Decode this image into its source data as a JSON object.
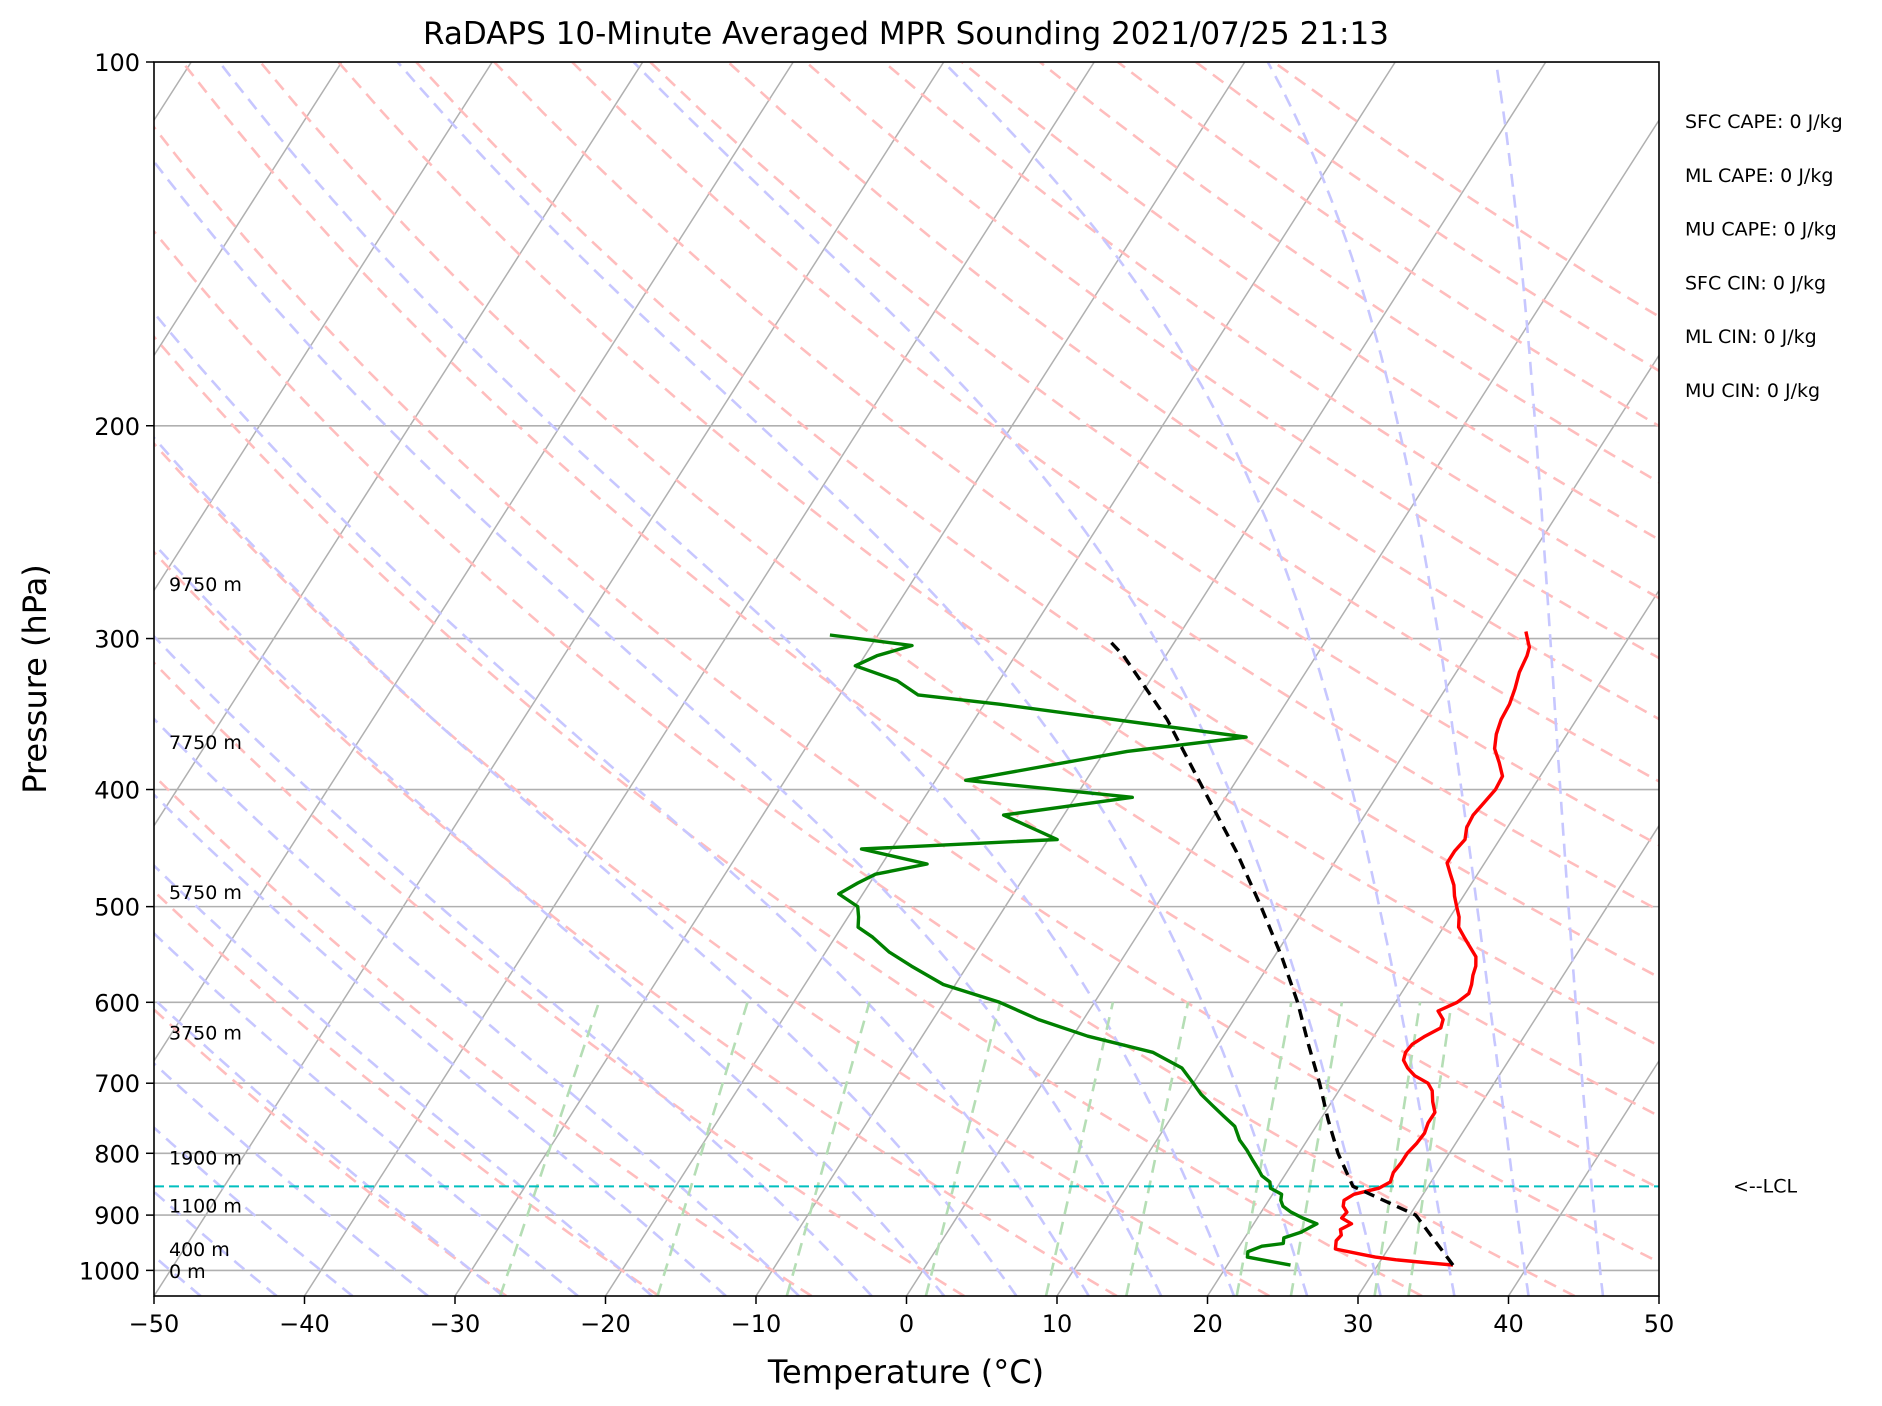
{
  "chart_data": {
    "type": "line",
    "title": "RaDAPS 10-Minute Averaged MPR Sounding 2021/07/25 21:13",
    "xlabel": "Temperature (°C)",
    "ylabel": "Pressure (hPa)",
    "xlim": [
      -50,
      50
    ],
    "ylim": [
      1050,
      100
    ],
    "y_scale": "log",
    "x_ticks": [
      "−50",
      "−40",
      "−30",
      "−20",
      "−10",
      "0",
      "10",
      "20",
      "30",
      "40",
      "50"
    ],
    "y_ticks": [
      "100",
      "200",
      "300",
      "400",
      "500",
      "600",
      "700",
      "800",
      "900",
      "1000"
    ],
    "grid": true,
    "series": [
      {
        "color": "#ff0000",
        "points": [
          [
            35.0,
            990
          ],
          [
            33.0,
            985
          ],
          [
            31.0,
            980
          ],
          [
            29.5,
            975
          ],
          [
            28.5,
            970
          ],
          [
            26.5,
            960
          ],
          [
            26.2,
            945
          ],
          [
            26.3,
            935
          ],
          [
            26.0,
            925
          ],
          [
            26.5,
            915
          ],
          [
            25.6,
            905
          ],
          [
            25.7,
            895
          ],
          [
            25.2,
            885
          ],
          [
            25.0,
            875
          ],
          [
            25.4,
            865
          ],
          [
            26.8,
            855
          ],
          [
            27.3,
            845
          ],
          [
            27.1,
            830
          ],
          [
            27.2,
            815
          ],
          [
            27.2,
            800
          ],
          [
            27.4,
            785
          ],
          [
            27.5,
            770
          ],
          [
            27.3,
            755
          ],
          [
            27.3,
            740
          ],
          [
            26.7,
            725
          ],
          [
            26.2,
            710
          ],
          [
            25.6,
            700
          ],
          [
            24.4,
            690
          ],
          [
            23.6,
            680
          ],
          [
            23.0,
            670
          ],
          [
            22.8,
            660
          ],
          [
            22.9,
            650
          ],
          [
            23.4,
            640
          ],
          [
            24.1,
            630
          ],
          [
            23.9,
            620
          ],
          [
            23.2,
            610
          ],
          [
            24.1,
            600
          ],
          [
            24.5,
            590
          ],
          [
            24.3,
            580
          ],
          [
            24.0,
            570
          ],
          [
            23.8,
            560
          ],
          [
            23.4,
            550
          ],
          [
            22.6,
            540
          ],
          [
            21.8,
            530
          ],
          [
            21.0,
            520
          ],
          [
            20.6,
            510
          ],
          [
            20.0,
            500
          ],
          [
            19.4,
            490
          ],
          [
            18.9,
            480
          ],
          [
            18.2,
            470
          ],
          [
            17.5,
            460
          ],
          [
            17.5,
            450
          ],
          [
            17.7,
            440
          ],
          [
            17.3,
            430
          ],
          [
            17.2,
            420
          ],
          [
            17.4,
            410
          ],
          [
            17.6,
            400
          ],
          [
            17.5,
            390
          ],
          [
            16.7,
            380
          ],
          [
            15.8,
            370
          ],
          [
            15.3,
            360
          ],
          [
            15.0,
            350
          ],
          [
            14.9,
            340
          ],
          [
            14.6,
            330
          ],
          [
            14.2,
            320
          ],
          [
            14.0,
            310
          ],
          [
            13.8,
            305
          ],
          [
            13.3,
            300
          ],
          [
            12.9,
            296
          ]
        ]
      },
      {
        "color": "#008000",
        "points": [
          [
            24.2,
            990
          ],
          [
            21.0,
            975
          ],
          [
            20.8,
            965
          ],
          [
            21.5,
            955
          ],
          [
            22.8,
            950
          ],
          [
            22.6,
            940
          ],
          [
            23.5,
            930
          ],
          [
            24.2,
            915
          ],
          [
            23.0,
            905
          ],
          [
            22.0,
            895
          ],
          [
            21.2,
            885
          ],
          [
            20.8,
            875
          ],
          [
            20.6,
            865
          ],
          [
            19.6,
            855
          ],
          [
            19.3,
            845
          ],
          [
            18.5,
            835
          ],
          [
            18.0,
            825
          ],
          [
            17.2,
            810
          ],
          [
            16.4,
            795
          ],
          [
            15.5,
            780
          ],
          [
            14.6,
            760
          ],
          [
            13.4,
            745
          ],
          [
            12.2,
            730
          ],
          [
            11.0,
            715
          ],
          [
            10.0,
            700
          ],
          [
            8.6,
            680
          ],
          [
            6.0,
            660
          ],
          [
            1.0,
            640
          ],
          [
            -3.0,
            620
          ],
          [
            -6.3,
            600
          ],
          [
            -10.8,
            580
          ],
          [
            -13.7,
            560
          ],
          [
            -15.8,
            545
          ],
          [
            -17.5,
            530
          ],
          [
            -18.9,
            520
          ],
          [
            -19.3,
            510
          ],
          [
            -19.8,
            500
          ],
          [
            -21.6,
            488
          ],
          [
            -20.8,
            478
          ],
          [
            -20.0,
            470
          ],
          [
            -17.0,
            461
          ],
          [
            -22.0,
            448
          ],
          [
            -9.4,
            440
          ],
          [
            -14.0,
            420
          ],
          [
            -6.2,
            406
          ],
          [
            -18.0,
            393
          ],
          [
            -8.5,
            372
          ],
          [
            -1.2,
            362
          ],
          [
            -19.0,
            340
          ],
          [
            -24.8,
            334
          ],
          [
            -26.8,
            325
          ],
          [
            -30.2,
            316
          ],
          [
            -29.2,
            310
          ],
          [
            -27.3,
            304
          ],
          [
            -33.2,
            298
          ]
        ]
      },
      {
        "color": "#000000",
        "points": [
          [
            35.0,
            990
          ],
          [
            30.4,
            900
          ],
          [
            25.0,
            852
          ],
          [
            22.6,
            800
          ],
          [
            20.5,
            750
          ],
          [
            18.4,
            700
          ],
          [
            16.0,
            650
          ],
          [
            13.5,
            600
          ],
          [
            10.5,
            550
          ],
          [
            7.0,
            500
          ],
          [
            3.0,
            450
          ],
          [
            -1.8,
            400
          ],
          [
            -7.2,
            350
          ],
          [
            -12.8,
            310
          ],
          [
            -14.6,
            300
          ]
        ]
      }
    ],
    "lcl": {
      "pressure": 852,
      "label": "<--LCL"
    },
    "height_labels": [
      {
        "text": "9750 m",
        "pressure": 271
      },
      {
        "text": "7750 m",
        "pressure": 366
      },
      {
        "text": "5750 m",
        "pressure": 487
      },
      {
        "text": "3750 m",
        "pressure": 637
      },
      {
        "text": "1900 m",
        "pressure": 808
      },
      {
        "text": "1100 m",
        "pressure": 885
      },
      {
        "text": "400 m",
        "pressure": 962
      },
      {
        "text": "0 m",
        "pressure": 1003
      }
    ],
    "annotations": [
      "SFC CAPE: 0 J/kg",
      "ML CAPE: 0 J/kg",
      "MU CAPE: 0 J/kg",
      "SFC CIN: 0 J/kg",
      "ML CIN: 0 J/kg",
      "MU CIN: 0 J/kg"
    ],
    "isotherm_color": "#b0b0b0",
    "dry_adiabat_color": "#ffbdbd",
    "moist_adiabat_color": "#c7c7ff",
    "mixing_ratio_color": "#b5deb5",
    "lcl_color": "#00bfbf"
  }
}
